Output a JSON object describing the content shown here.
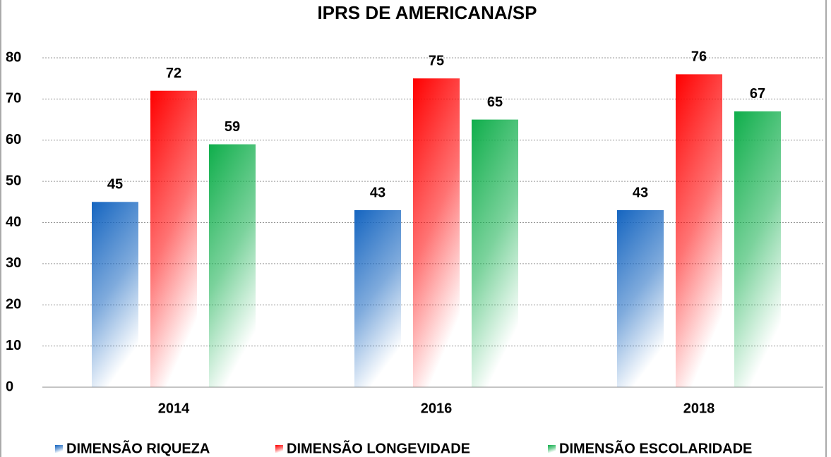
{
  "chart_data": {
    "type": "bar",
    "title": "IPRS  DE AMERICANA/SP",
    "categories": [
      "2014",
      "2016",
      "2018"
    ],
    "series": [
      {
        "name": "DIMENSÃO RIQUEZA",
        "color": "#1565c0",
        "values": [
          45,
          43,
          43
        ]
      },
      {
        "name": "DIMENSÃO LONGEVIDADE",
        "color": "#ff0000",
        "values": [
          72,
          75,
          76
        ]
      },
      {
        "name": "DIMENSÃO ESCOLARIDADE",
        "color": "#0fae4b",
        "values": [
          59,
          65,
          67
        ]
      }
    ],
    "ylim": [
      0,
      80
    ],
    "yticks": [
      0,
      10,
      20,
      30,
      40,
      50,
      60,
      70,
      80
    ],
    "grid": true,
    "legend": "bottom"
  }
}
